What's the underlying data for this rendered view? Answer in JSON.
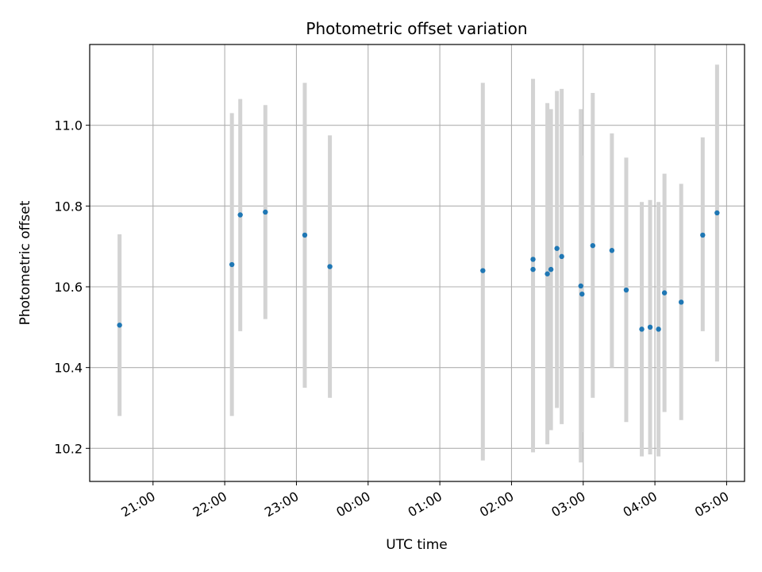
{
  "chart_data": {
    "type": "scatter",
    "title": "Photometric offset variation",
    "xlabel": "UTC time",
    "ylabel": "Photometric offset",
    "xlim": [
      "2000-01-01 20:07",
      "2000-01-02 05:15"
    ],
    "ylim": [
      10.118,
      11.2
    ],
    "grid": true,
    "x_ticks": [
      {
        "time": "2000-01-01 21:00",
        "label": "21:00"
      },
      {
        "time": "2000-01-01 22:00",
        "label": "22:00"
      },
      {
        "time": "2000-01-01 23:00",
        "label": "23:00"
      },
      {
        "time": "2000-01-02 00:00",
        "label": "00:00"
      },
      {
        "time": "2000-01-02 01:00",
        "label": "01:00"
      },
      {
        "time": "2000-01-02 02:00",
        "label": "02:00"
      },
      {
        "time": "2000-01-02 03:00",
        "label": "03:00"
      },
      {
        "time": "2000-01-02 04:00",
        "label": "04:00"
      },
      {
        "time": "2000-01-02 05:00",
        "label": "05:00"
      }
    ],
    "y_ticks": [
      {
        "value": 10.2,
        "label": "10.2"
      },
      {
        "value": 10.4,
        "label": "10.4"
      },
      {
        "value": 10.6,
        "label": "10.6"
      },
      {
        "value": 10.8,
        "label": "10.8"
      },
      {
        "value": 11.0,
        "label": "11.0"
      }
    ],
    "colors": {
      "point": "#1f77b4",
      "errorbar": "#d3d3d3",
      "grid": "#b0b0b0"
    },
    "points": [
      {
        "x": "2000-01-01 20:32",
        "y": 10.505,
        "ylow": 10.28,
        "yhigh": 10.73
      },
      {
        "x": "2000-01-01 22:06",
        "y": 10.655,
        "ylow": 10.28,
        "yhigh": 11.03
      },
      {
        "x": "2000-01-01 22:13",
        "y": 10.778,
        "ylow": 10.49,
        "yhigh": 11.065
      },
      {
        "x": "2000-01-01 22:34",
        "y": 10.785,
        "ylow": 10.52,
        "yhigh": 11.05
      },
      {
        "x": "2000-01-01 23:07",
        "y": 10.728,
        "ylow": 10.35,
        "yhigh": 11.105
      },
      {
        "x": "2000-01-01 23:28",
        "y": 10.65,
        "ylow": 10.325,
        "yhigh": 10.975
      },
      {
        "x": "2000-01-02 01:36",
        "y": 10.64,
        "ylow": 10.17,
        "yhigh": 11.105
      },
      {
        "x": "2000-01-02 02:18",
        "y": 10.668,
        "ylow": 10.22,
        "yhigh": 11.115
      },
      {
        "x": "2000-01-02 02:18",
        "y": 10.643,
        "ylow": 10.19,
        "yhigh": 11.1
      },
      {
        "x": "2000-01-02 02:30",
        "y": 10.632,
        "ylow": 10.21,
        "yhigh": 11.055
      },
      {
        "x": "2000-01-02 02:33",
        "y": 10.643,
        "ylow": 10.245,
        "yhigh": 11.04
      },
      {
        "x": "2000-01-02 02:38",
        "y": 10.695,
        "ylow": 10.3,
        "yhigh": 11.085
      },
      {
        "x": "2000-01-02 02:42",
        "y": 10.675,
        "ylow": 10.26,
        "yhigh": 11.09
      },
      {
        "x": "2000-01-02 02:58",
        "y": 10.602,
        "ylow": 10.165,
        "yhigh": 11.04
      },
      {
        "x": "2000-01-02 02:59",
        "y": 10.582,
        "ylow": 10.24,
        "yhigh": 10.925
      },
      {
        "x": "2000-01-02 03:08",
        "y": 10.702,
        "ylow": 10.325,
        "yhigh": 11.08
      },
      {
        "x": "2000-01-02 03:24",
        "y": 10.69,
        "ylow": 10.4,
        "yhigh": 10.98
      },
      {
        "x": "2000-01-02 03:36",
        "y": 10.592,
        "ylow": 10.265,
        "yhigh": 10.92
      },
      {
        "x": "2000-01-02 03:49",
        "y": 10.495,
        "ylow": 10.18,
        "yhigh": 10.81
      },
      {
        "x": "2000-01-02 03:56",
        "y": 10.5,
        "ylow": 10.185,
        "yhigh": 10.815
      },
      {
        "x": "2000-01-02 04:03",
        "y": 10.495,
        "ylow": 10.18,
        "yhigh": 10.81
      },
      {
        "x": "2000-01-02 04:08",
        "y": 10.585,
        "ylow": 10.29,
        "yhigh": 10.88
      },
      {
        "x": "2000-01-02 04:22",
        "y": 10.562,
        "ylow": 10.27,
        "yhigh": 10.855
      },
      {
        "x": "2000-01-02 04:40",
        "y": 10.728,
        "ylow": 10.49,
        "yhigh": 10.97
      },
      {
        "x": "2000-01-02 04:52",
        "y": 10.783,
        "ylow": 10.415,
        "yhigh": 11.15
      }
    ]
  }
}
